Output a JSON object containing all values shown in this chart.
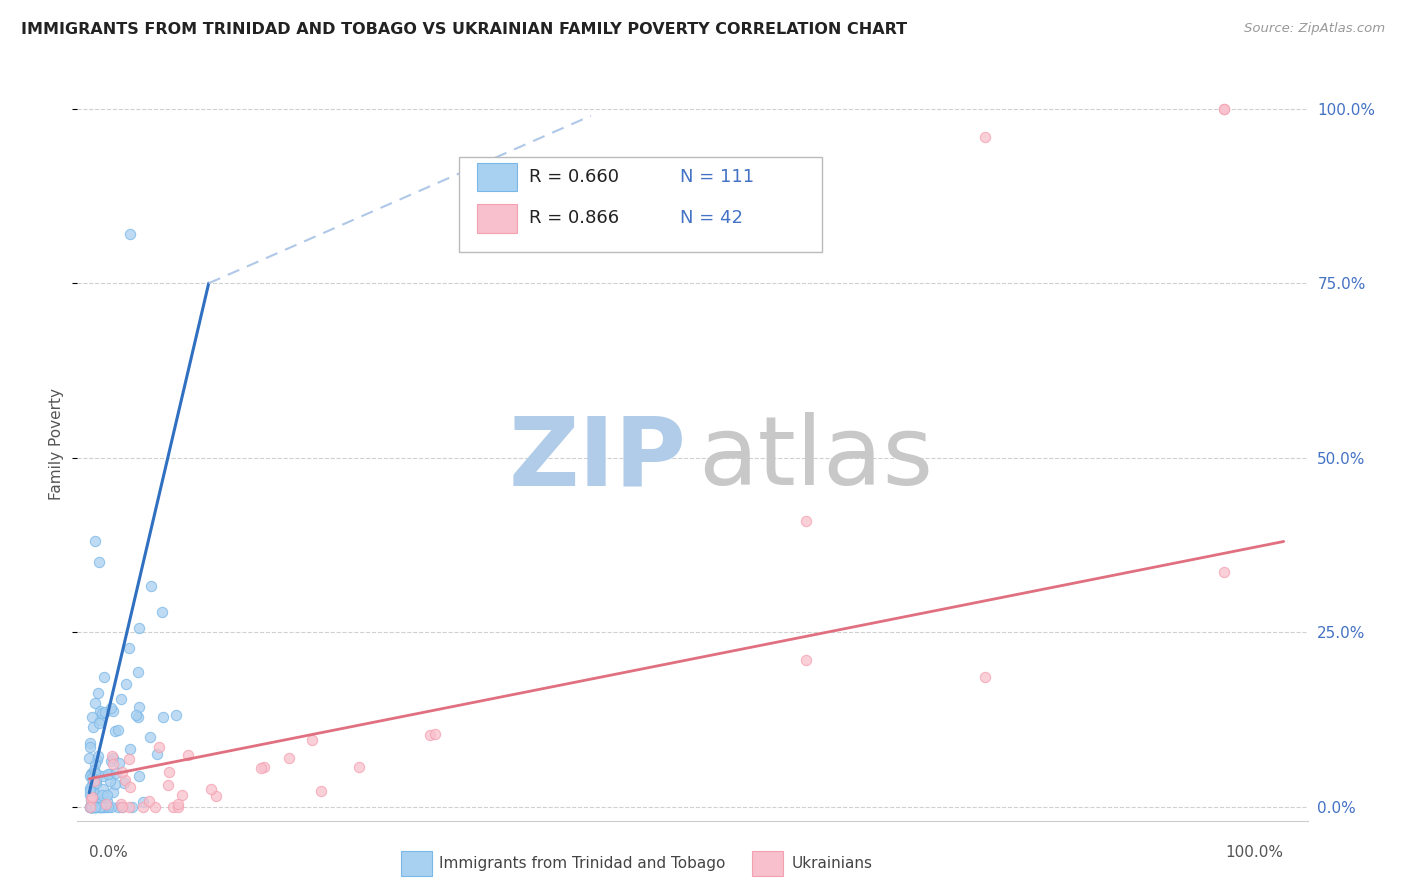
{
  "title": "IMMIGRANTS FROM TRINIDAD AND TOBAGO VS UKRAINIAN FAMILY POVERTY CORRELATION CHART",
  "source": "Source: ZipAtlas.com",
  "ylabel": "Family Poverty",
  "legend_r1": "R = 0.660",
  "legend_n1": "N = 111",
  "legend_r2": "R = 0.866",
  "legend_n2": "N = 42",
  "color_tt": "#7ab8e8",
  "color_tt_fill": "#a8d0f0",
  "color_uk": "#f4a0b0",
  "color_uk_fill": "#f8c0cc",
  "color_tt_line": "#3070c0",
  "color_uk_line": "#e07080",
  "color_tt_line_ext": "#b0c8e8",
  "legend_label1": "Immigrants from Trinidad and Tobago",
  "legend_label2": "Ukrainians",
  "background_color": "#ffffff",
  "grid_color": "#d0d0d0",
  "title_color": "#222222",
  "right_axis_color": "#4472c4",
  "watermark_color_zip": "#b0cce8",
  "watermark_color_atlas": "#c8c8c8",
  "xlim": [
    0.0,
    1.0
  ],
  "ylim": [
    0.0,
    1.0
  ],
  "yticks": [
    0.0,
    0.25,
    0.5,
    0.75,
    1.0
  ],
  "ytick_labels": [
    "0.0%",
    "25.0%",
    "50.0%",
    "75.0%",
    "100.0%"
  ],
  "xtick_labels_left": "0.0%",
  "xtick_labels_right": "100.0%"
}
